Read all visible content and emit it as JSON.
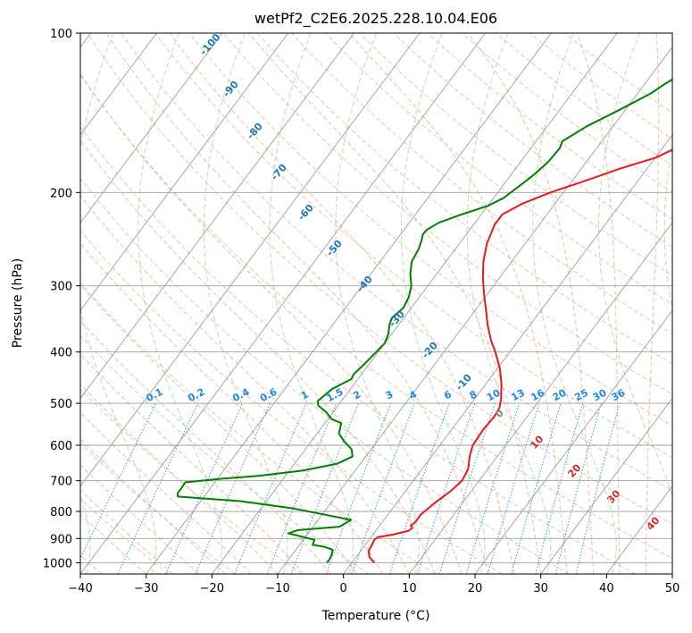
{
  "chart_data": {
    "type": "line",
    "title": "wetPf2_C2E6.2025.228.10.04.E06",
    "xlabel": "Temperature (°C)",
    "ylabel": "Pressure (hPa)",
    "xlim": [
      -40,
      50
    ],
    "ylim": [
      1050,
      100
    ],
    "y_scale": "log",
    "x_ticks": [
      -40,
      -30,
      -20,
      -10,
      0,
      10,
      20,
      30,
      40,
      50
    ],
    "y_ticks": [
      1000,
      900,
      800,
      700,
      600,
      500,
      400,
      300,
      200,
      100
    ],
    "grid": true,
    "series": [
      {
        "color": "#e41a1c",
        "points": [
          [
            3.4,
            1000
          ],
          [
            2,
            975
          ],
          [
            1.2,
            950
          ],
          [
            1,
            925
          ],
          [
            0.8,
            905
          ],
          [
            1,
            895
          ],
          [
            3,
            885
          ],
          [
            5,
            870
          ],
          [
            5.2,
            860
          ],
          [
            4.7,
            850
          ],
          [
            5,
            840
          ],
          [
            5,
            810
          ],
          [
            5.8,
            770
          ],
          [
            6.8,
            735
          ],
          [
            7.4,
            700
          ],
          [
            7,
            665
          ],
          [
            5.8,
            630
          ],
          [
            5,
            600
          ],
          [
            4.8,
            560
          ],
          [
            5,
            530
          ],
          [
            4.8,
            510
          ],
          [
            4,
            490
          ],
          [
            2.4,
            460
          ],
          [
            0.4,
            430
          ],
          [
            -2.2,
            400
          ],
          [
            -4.2,
            380
          ],
          [
            -6.5,
            355
          ],
          [
            -8.5,
            332
          ],
          [
            -10.6,
            310
          ],
          [
            -12.5,
            290
          ],
          [
            -14.3,
            270
          ],
          [
            -15.8,
            250
          ],
          [
            -16.8,
            230
          ],
          [
            -16.8,
            220
          ],
          [
            -15,
            210
          ],
          [
            -12,
            200
          ],
          [
            -8,
            190
          ],
          [
            -4,
            180
          ],
          [
            0,
            172
          ],
          [
            2,
            165
          ],
          [
            6,
            160
          ],
          [
            8.8,
            150
          ],
          [
            9.3,
            140
          ],
          [
            10,
            132
          ],
          [
            11.5,
            125
          ],
          [
            13.5,
            118
          ],
          [
            17.5,
            112
          ],
          [
            21.5,
            107
          ],
          [
            24,
            103
          ],
          [
            26.6,
            100
          ]
        ]
      },
      {
        "color": "#008000",
        "points": [
          [
            -3.8,
            1000
          ],
          [
            -3.8,
            985
          ],
          [
            -4,
            965
          ],
          [
            -4.3,
            950
          ],
          [
            -4.4,
            945
          ],
          [
            -6,
            933
          ],
          [
            -8,
            925
          ],
          [
            -8.3,
            905
          ],
          [
            -13,
            880
          ],
          [
            -12,
            868
          ],
          [
            -6,
            855
          ],
          [
            -5,
            830
          ],
          [
            -15,
            790
          ],
          [
            -24,
            765
          ],
          [
            -34,
            750
          ],
          [
            -34.4,
            740
          ],
          [
            -34.4,
            725
          ],
          [
            -34.5,
            705
          ],
          [
            -30,
            695
          ],
          [
            -24,
            685
          ],
          [
            -18,
            670
          ],
          [
            -13.5,
            650
          ],
          [
            -12,
            630
          ],
          [
            -13,
            610
          ],
          [
            -15,
            590
          ],
          [
            -16.7,
            570
          ],
          [
            -17.5,
            545
          ],
          [
            -19.5,
            535
          ],
          [
            -21,
            520
          ],
          [
            -23,
            505
          ],
          [
            -23.6,
            495
          ],
          [
            -22.8,
            470
          ],
          [
            -21,
            450
          ],
          [
            -21.2,
            440
          ],
          [
            -20.8,
            425
          ],
          [
            -20.3,
            400
          ],
          [
            -20,
            385
          ],
          [
            -20.5,
            370
          ],
          [
            -21.4,
            355
          ],
          [
            -21.8,
            345
          ],
          [
            -21.2,
            330
          ],
          [
            -21.6,
            315
          ],
          [
            -22.5,
            300
          ],
          [
            -24,
            285
          ],
          [
            -25.2,
            270
          ],
          [
            -25.6,
            255
          ],
          [
            -26.2,
            245
          ],
          [
            -26.6,
            240
          ],
          [
            -26.5,
            235
          ],
          [
            -25.5,
            228
          ],
          [
            -23,
            220
          ],
          [
            -20,
            212
          ],
          [
            -18.5,
            205
          ],
          [
            -17.5,
            195
          ],
          [
            -16.5,
            185
          ],
          [
            -15.8,
            175
          ],
          [
            -15.6,
            165
          ],
          [
            -16,
            160
          ],
          [
            -14,
            150
          ],
          [
            -11,
            140
          ],
          [
            -8,
            130
          ],
          [
            -7,
            125
          ],
          [
            -4.4,
            115
          ],
          [
            -3.7,
            110
          ],
          [
            -2.9,
            105
          ],
          [
            -2,
            100
          ]
        ]
      }
    ],
    "dry_adiabats": [
      -100,
      -90,
      -80,
      -70,
      -60,
      -50,
      -40,
      -30,
      -20,
      -10
    ],
    "mixing_ratios": [
      "0.1",
      "0.2",
      "0.4",
      "0.6",
      "1",
      "1.5",
      "2",
      "3",
      "4",
      "6",
      "8",
      "10",
      "13",
      "16",
      "20",
      "25",
      "30",
      "36"
    ],
    "moist_adiabats": [
      "0",
      "10",
      "20",
      "30",
      "40"
    ]
  }
}
